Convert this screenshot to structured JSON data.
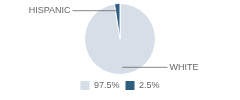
{
  "chart_data": {
    "type": "pie",
    "categories": [
      "WHITE",
      "HISPANIC"
    ],
    "values": [
      97.5,
      2.5
    ],
    "value_labels": [
      "97.5%",
      "2.5%"
    ],
    "colors": [
      "#d6dfe8",
      "#2e5f7e"
    ],
    "legend": "bottom"
  }
}
